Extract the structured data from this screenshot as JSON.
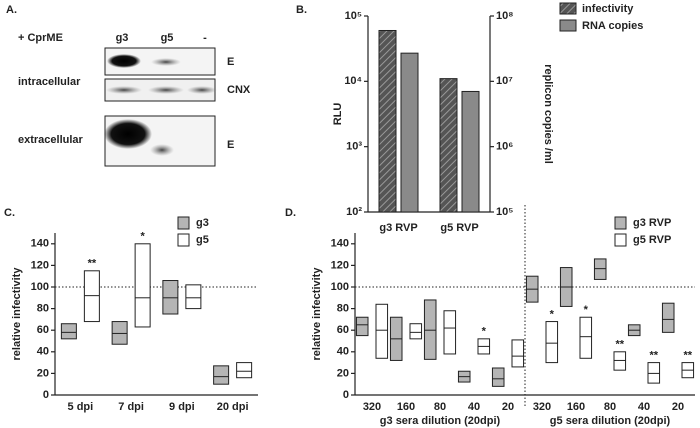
{
  "panel_a": {
    "label": "A.",
    "treatment": "+ CprME",
    "lanes": [
      "g3",
      "g5",
      "-"
    ],
    "rows": [
      "intracellular",
      "extracellular"
    ],
    "bands": [
      "E",
      "CNX",
      "E"
    ]
  },
  "chart_data": [
    {
      "type": "bar",
      "panel_label": "B.",
      "ylabel": "RLU",
      "y2label": "replicon copies /ml",
      "log_scale": true,
      "categories": [
        "g3 RVP",
        "g5 RVP"
      ],
      "series": [
        {
          "name": "infectivity",
          "color": "#5a5a5a",
          "hatch": true,
          "values": [
            60000,
            11000
          ]
        },
        {
          "name": "RNA copies",
          "color": "#8a8a8a",
          "hatch": false,
          "axis": "y2",
          "values": [
            27000000,
            7000000
          ]
        }
      ],
      "ylim": [
        100,
        100000
      ],
      "yticks": [
        {
          "value": 100,
          "label": "10²"
        },
        {
          "value": 1000,
          "label": "10³"
        },
        {
          "value": 10000,
          "label": "10⁴"
        },
        {
          "value": 100000,
          "label": "10⁵"
        }
      ],
      "y2lim": [
        100000,
        100000000
      ],
      "y2ticks": [
        {
          "value": 100000,
          "label": "10⁵"
        },
        {
          "value": 1000000,
          "label": "10⁶"
        },
        {
          "value": 10000000,
          "label": "10⁷"
        },
        {
          "value": 100000000,
          "label": "10⁸"
        }
      ]
    },
    {
      "type": "floating_box",
      "panel_label": "C.",
      "ylabel": "relative infectivity",
      "reference_line": 100,
      "categories": [
        "5 dpi",
        "7 dpi",
        "9 dpi",
        "20 dpi"
      ],
      "series": [
        {
          "name": "g3",
          "color": "#b5b5b5",
          "min": [
            52,
            47,
            75,
            10
          ],
          "median": [
            58,
            57,
            90,
            17
          ],
          "max": [
            66,
            68,
            106,
            27
          ],
          "significance": [
            null,
            null,
            null,
            null
          ]
        },
        {
          "name": "g5",
          "color": "#ffffff",
          "min": [
            68,
            63,
            80,
            16
          ],
          "median": [
            92,
            90,
            90,
            22
          ],
          "max": [
            115,
            140,
            102,
            30
          ],
          "significance": [
            "**",
            "*",
            null,
            null
          ]
        }
      ],
      "ylim": [
        0,
        150
      ],
      "yticks": [
        0,
        20,
        40,
        60,
        80,
        100,
        120,
        140
      ]
    },
    {
      "type": "floating_box",
      "panel_label": "D.",
      "ylabel": "relative infectivity",
      "reference_line": 100,
      "groups": [
        {
          "label": "g3 sera dilution (20dpi)",
          "categories": [
            "320",
            "160",
            "80",
            "40",
            "20"
          ]
        },
        {
          "label": "g5 sera dilution (20dpi)",
          "categories": [
            "320",
            "160",
            "80",
            "40",
            "20"
          ]
        }
      ],
      "series": [
        {
          "name": "g3 RVP",
          "color": "#b5b5b5",
          "min": [
            55,
            32,
            33,
            12,
            8,
            86,
            82,
            107,
            55,
            58
          ],
          "median": [
            65,
            52,
            60,
            17,
            15,
            98,
            100,
            117,
            60,
            70
          ],
          "max": [
            72,
            72,
            88,
            22,
            25,
            110,
            118,
            126,
            65,
            85
          ],
          "significance": [
            null,
            null,
            null,
            null,
            null,
            null,
            null,
            null,
            null,
            null
          ]
        },
        {
          "name": "g5 RVP",
          "color": "#ffffff",
          "min": [
            34,
            52,
            38,
            38,
            26,
            30,
            34,
            23,
            11,
            16
          ],
          "median": [
            60,
            58,
            62,
            45,
            36,
            48,
            54,
            32,
            20,
            23
          ],
          "max": [
            84,
            66,
            78,
            52,
            51,
            68,
            72,
            40,
            30,
            30
          ],
          "significance": [
            null,
            null,
            null,
            "*",
            null,
            "*",
            "*",
            "**",
            "**",
            "**"
          ]
        }
      ],
      "ylim": [
        0,
        150
      ],
      "yticks": [
        0,
        20,
        40,
        60,
        80,
        100,
        120,
        140
      ]
    }
  ]
}
